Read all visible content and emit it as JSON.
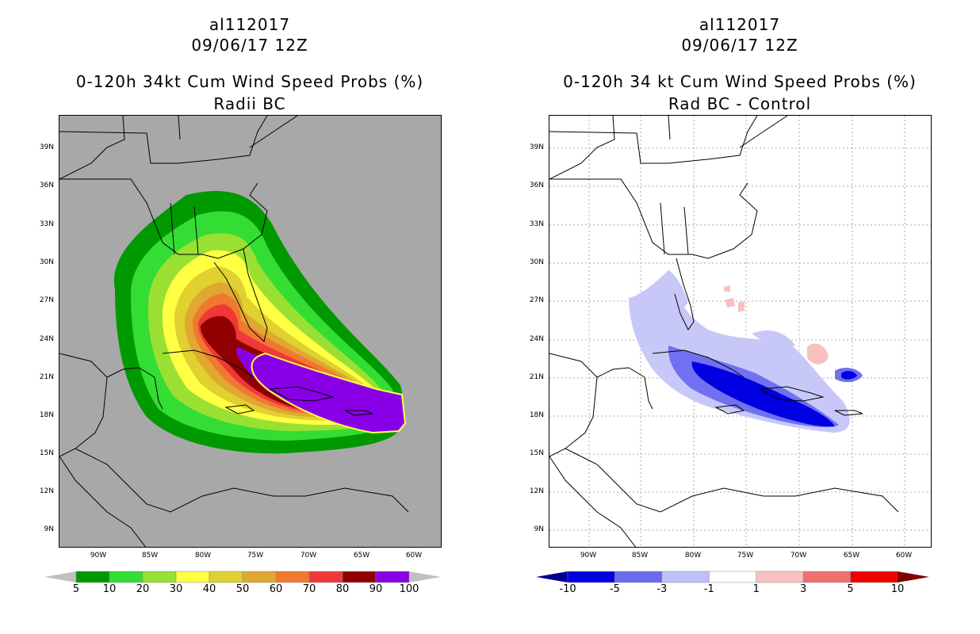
{
  "left": {
    "title_line1": "al112017",
    "title_line2": "09/06/17 12Z",
    "title_line3": "0-120h 34kt Cum Wind Speed Probs (%)",
    "title_line4": "Radii BC",
    "colorbar": {
      "labels": [
        "5",
        "10",
        "20",
        "30",
        "40",
        "50",
        "60",
        "70",
        "80",
        "90",
        "100"
      ],
      "colors": [
        "#009900",
        "#33dd33",
        "#99e033",
        "#ffff44",
        "#e0d030",
        "#e0a830",
        "#f07830",
        "#f03838",
        "#900000",
        "#8a00e6"
      ],
      "low_color": "#c0c0c0",
      "high_color": "#c0c0c0"
    }
  },
  "right": {
    "title_line1": "al112017",
    "title_line2": "09/06/17 12Z",
    "title_line3": "0-120h 34 kt Cum Wind Speed Probs (%)",
    "title_line4": "Rad BC - Control",
    "colorbar": {
      "labels": [
        "-10",
        "-5",
        "-3",
        "-1",
        "1",
        "3",
        "5",
        "10"
      ],
      "colors": [
        "#0000e0",
        "#6a6aee",
        "#c0c0f8",
        "#ffffff",
        "#f8c0c0",
        "#f07070",
        "#f00000"
      ],
      "low_color": "#000090",
      "high_color": "#800000"
    }
  },
  "axes": {
    "lat_labels": [
      "39N",
      "36N",
      "33N",
      "30N",
      "27N",
      "24N",
      "21N",
      "18N",
      "15N",
      "12N",
      "9N"
    ],
    "lon_labels": [
      "90W",
      "85W",
      "80W",
      "75W",
      "70W",
      "65W",
      "60W"
    ]
  }
}
